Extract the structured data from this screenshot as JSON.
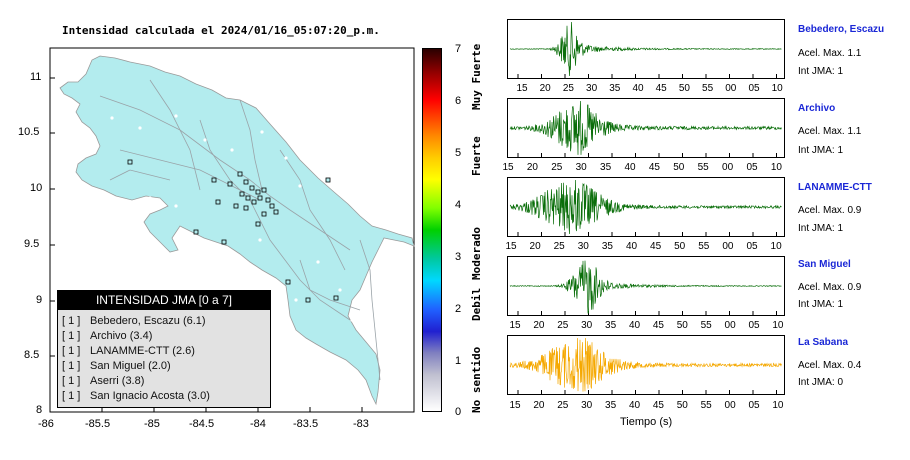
{
  "title": "Intensidad calculada el 2024/01/16_05:07:20_p.m.",
  "map": {
    "lon_ticks": [
      "-86",
      "-85.5",
      "-85",
      "-84.5",
      "-84",
      "-83.5",
      "-83"
    ],
    "lat_ticks": [
      "11",
      "10.5",
      "10",
      "9.5",
      "9",
      "8.5",
      "8"
    ],
    "land_color": "#b3ecee",
    "station_color": "#ffffff"
  },
  "colorbar": {
    "ticks": [
      "7",
      "6",
      "5",
      "4",
      "3",
      "2",
      "1",
      "0"
    ],
    "categories": [
      "Muy Fuerte",
      "Fuerte",
      "Moderado",
      "Debil",
      "No sentido"
    ]
  },
  "legend": {
    "title": "INTENSIDAD JMA [0 a 7]",
    "rows": [
      {
        "level": "[ 1 ]",
        "name": "Bebedero, Escazu (6.1)"
      },
      {
        "level": "[ 1 ]",
        "name": "Archivo (3.4)"
      },
      {
        "level": "[ 1 ]",
        "name": "LANAMME-CTT (2.6)"
      },
      {
        "level": "[ 1 ]",
        "name": "San Miguel (2.0)"
      },
      {
        "level": "[ 1 ]",
        "name": "Aserri (3.8)"
      },
      {
        "level": "[ 1 ]",
        "name": "San Ignacio Acosta (3.0)"
      }
    ]
  },
  "stations": [
    {
      "name": "Bebedero, Escazu",
      "accel": "Acel. Max. 1.1",
      "int": "Int JMA: 1",
      "color": "#0a6e0a"
    },
    {
      "name": "Archivo",
      "accel": "Acel. Max. 1.1",
      "int": "Int JMA: 1",
      "color": "#0a6e0a"
    },
    {
      "name": "LANAMME-CTT",
      "accel": "Acel. Max. 0.9",
      "int": "Int JMA: 1",
      "color": "#0a6e0a"
    },
    {
      "name": "San Miguel",
      "accel": "Acel. Max. 0.9",
      "int": "Int JMA: 1",
      "color": "#0a6e0a"
    },
    {
      "name": "La Sabana",
      "accel": "Acel. Max. 0.4",
      "int": "Int JMA: 0",
      "color": "#f5a800"
    }
  ],
  "time_ticks_first": [
    "15",
    "20",
    "25",
    "30",
    "35",
    "40",
    "45",
    "50",
    "55",
    "00",
    "05",
    "10"
  ],
  "time_ticks_other": [
    "15",
    "20",
    "25",
    "30",
    "35",
    "40",
    "45",
    "50",
    "55",
    "00",
    "05",
    "10"
  ],
  "time_ticks_archivo": [
    "15",
    "20",
    "25",
    "30",
    "35",
    "40",
    "45",
    "50",
    "55",
    "00",
    "05",
    "10"
  ],
  "time_axis_label": "Tiempo (s)"
}
